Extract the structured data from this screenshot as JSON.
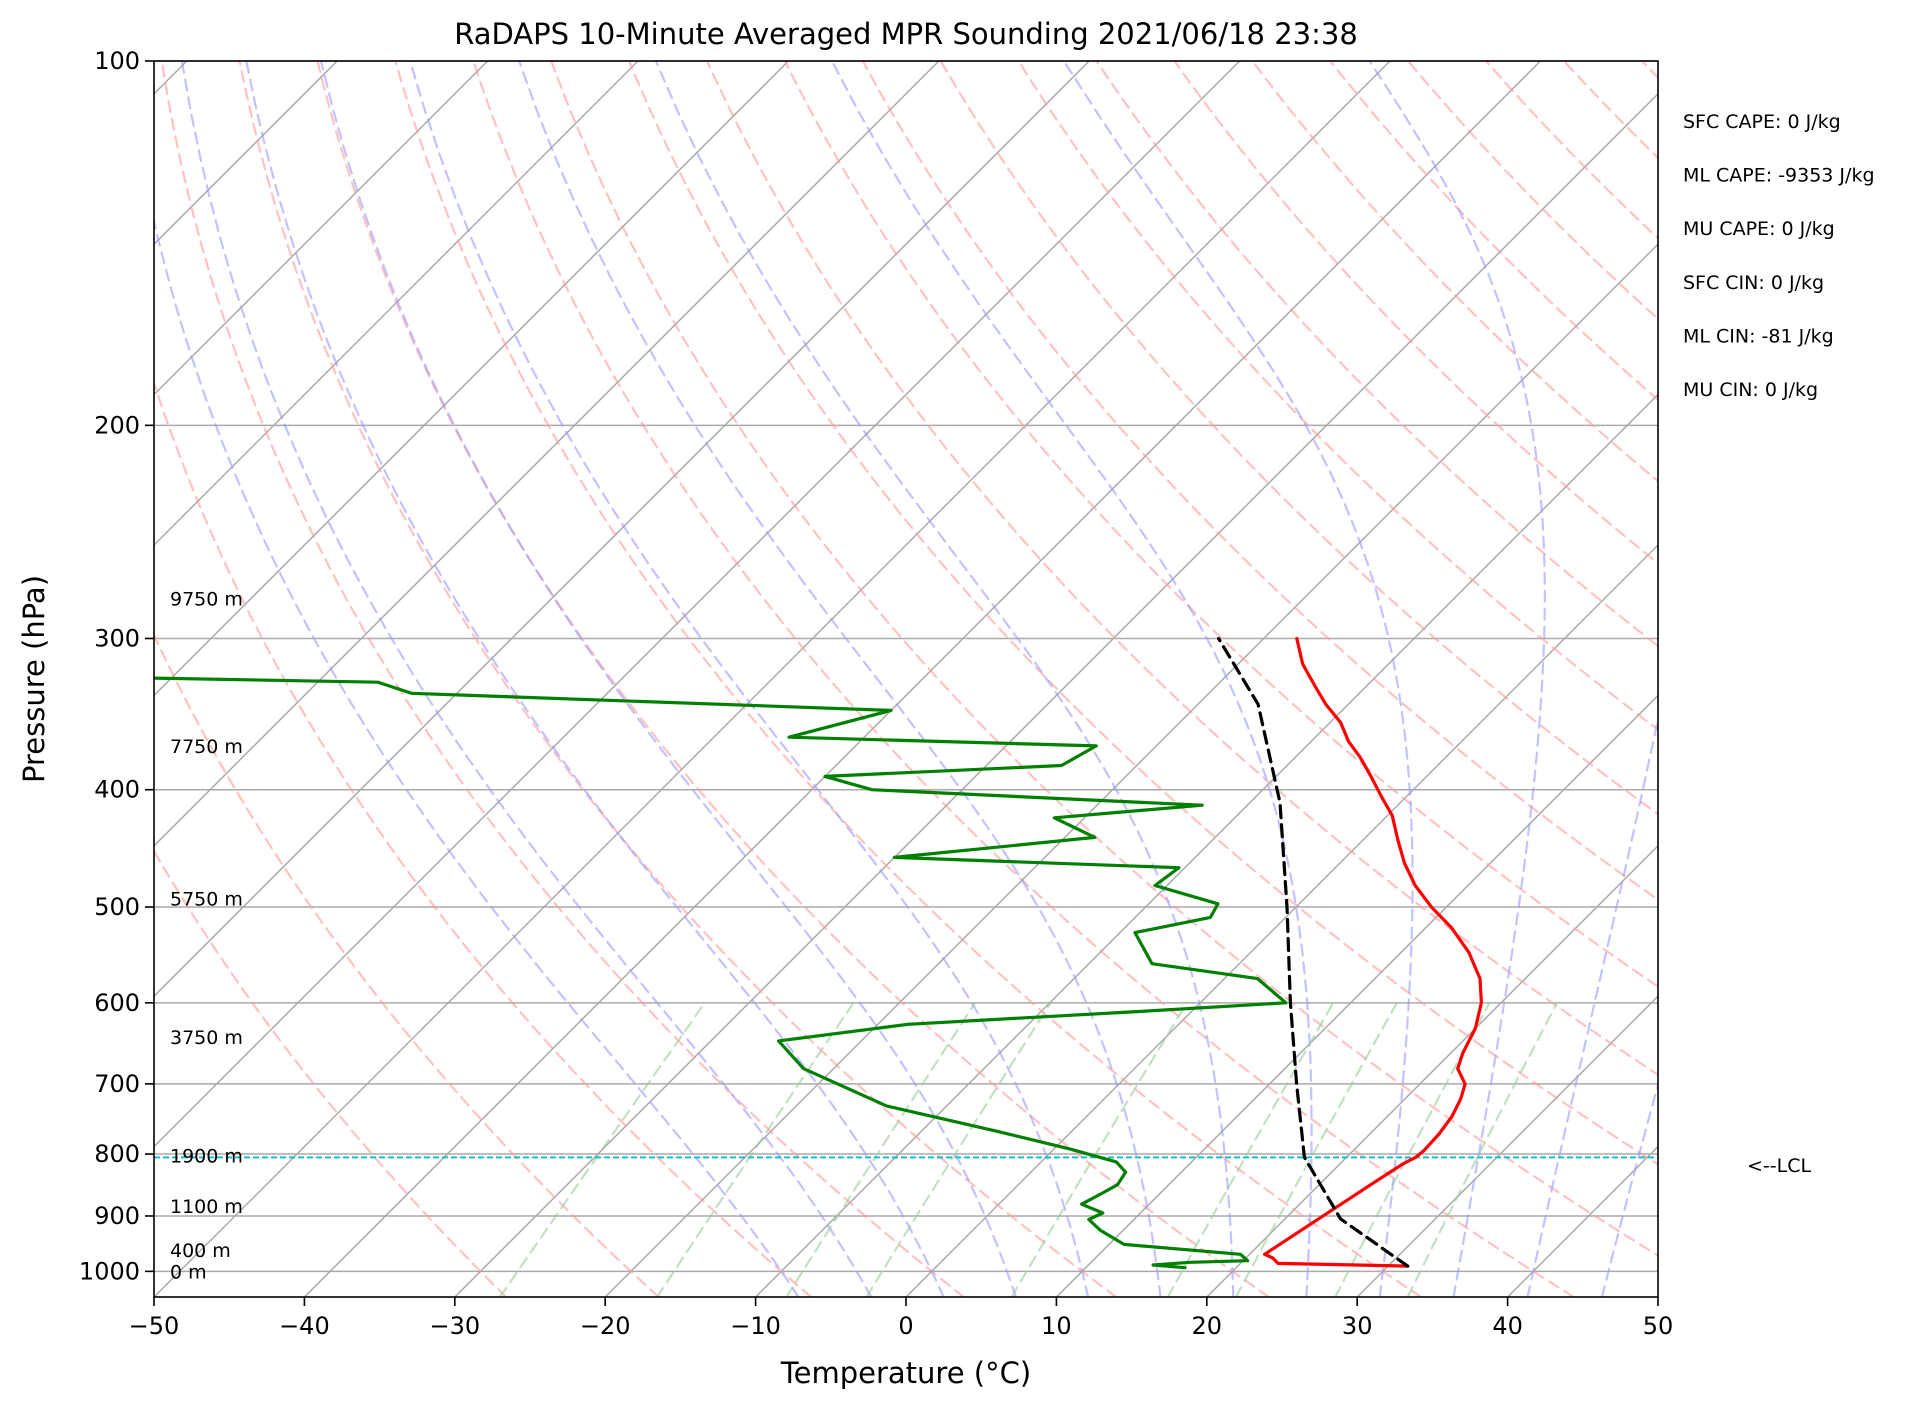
{
  "chart_data": {
    "type": "line",
    "title": "RaDAPS 10-Minute Averaged MPR Sounding 2021/06/18 23:38",
    "xlabel": "Temperature (°C)",
    "ylabel": "Pressure (hPa)",
    "xlim": [
      -50,
      50
    ],
    "ylim": [
      1050,
      100
    ],
    "y_scale": "log",
    "skew": true,
    "grid": true,
    "x_ticks": [
      -50,
      -40,
      -30,
      -20,
      -10,
      0,
      10,
      20,
      30,
      40,
      50
    ],
    "x_tick_labels": [
      "−50",
      "−40",
      "−30",
      "−20",
      "−10",
      "0",
      "10",
      "20",
      "30",
      "40",
      "50"
    ],
    "y_ticks": [
      100,
      200,
      300,
      400,
      500,
      600,
      700,
      800,
      900,
      1000
    ],
    "y_tick_labels": [
      "100",
      "200",
      "300",
      "400",
      "500",
      "600",
      "700",
      "800",
      "900",
      "1000"
    ],
    "series": [
      {
        "role": "temperature",
        "color": "#ff0000",
        "points": [
          [
            31.3,
            990
          ],
          [
            22.5,
            985
          ],
          [
            21.8,
            975
          ],
          [
            21.0,
            968
          ],
          [
            23.5,
            845
          ],
          [
            24.2,
            815
          ],
          [
            24.6,
            805
          ],
          [
            24.7,
            795
          ],
          [
            24.6,
            770
          ],
          [
            24.3,
            745
          ],
          [
            23.7,
            720
          ],
          [
            23.0,
            700
          ],
          [
            21.5,
            680
          ],
          [
            20.8,
            660
          ],
          [
            20.0,
            630
          ],
          [
            18.7,
            600
          ],
          [
            17.0,
            573
          ],
          [
            14.5,
            545
          ],
          [
            11.7,
            520
          ],
          [
            9.0,
            500
          ],
          [
            6.5,
            480
          ],
          [
            4.3,
            460
          ],
          [
            2.3,
            440
          ],
          [
            0.3,
            420
          ],
          [
            -1.7,
            405
          ],
          [
            -3.7,
            390
          ],
          [
            -5.7,
            376
          ],
          [
            -7.5,
            365
          ],
          [
            -9.3,
            352
          ],
          [
            -11.5,
            340
          ],
          [
            -13.5,
            328
          ],
          [
            -15.7,
            315
          ],
          [
            -17.8,
            300
          ]
        ]
      },
      {
        "role": "dewpoint",
        "color": "#008000",
        "points": [
          [
            16.6,
            993
          ],
          [
            14.3,
            988
          ],
          [
            16.6,
            983
          ],
          [
            20.3,
            980
          ],
          [
            19.4,
            968
          ],
          [
            11.0,
            950
          ],
          [
            8.5,
            925
          ],
          [
            7.0,
            906
          ],
          [
            7.5,
            895
          ],
          [
            5.5,
            880
          ],
          [
            6.2,
            860
          ],
          [
            6.6,
            848
          ],
          [
            6.3,
            828
          ],
          [
            5.0,
            812
          ],
          [
            1.0,
            792
          ],
          [
            -5.0,
            766
          ],
          [
            -14.0,
            730
          ],
          [
            -22.0,
            680
          ],
          [
            -25.5,
            645
          ],
          [
            -18.0,
            625
          ],
          [
            -3.5,
            610
          ],
          [
            5.7,
            600
          ],
          [
            2.2,
            573
          ],
          [
            -5.8,
            557
          ],
          [
            -9.0,
            525
          ],
          [
            -5.0,
            510
          ],
          [
            -5.4,
            497
          ],
          [
            -10.8,
            480
          ],
          [
            -10.4,
            464
          ],
          [
            -30.0,
            455
          ],
          [
            -18.0,
            438
          ],
          [
            -22.0,
            422
          ],
          [
            -13.0,
            412
          ],
          [
            -36.0,
            400
          ],
          [
            -40.0,
            390
          ],
          [
            -25.0,
            382
          ],
          [
            -24.0,
            368
          ],
          [
            -45.0,
            362
          ],
          [
            -40.0,
            344
          ],
          [
            -73.0,
            333
          ],
          [
            -76.0,
            326
          ],
          [
            -100.0,
            322
          ]
        ]
      },
      {
        "role": "parcel",
        "color": "#000000",
        "dash": true,
        "points": [
          [
            31.3,
            990
          ],
          [
            23.7,
            905
          ],
          [
            17.2,
            805
          ],
          [
            11.8,
            700
          ],
          [
            6.0,
            600
          ],
          [
            -0.6,
            500
          ],
          [
            -8.0,
            410
          ],
          [
            -16.0,
            340
          ],
          [
            -23.0,
            300
          ]
        ]
      }
    ],
    "lcl": {
      "pressure": 805,
      "label": "<--LCL",
      "color": "#17becf"
    },
    "height_labels": [
      {
        "label": "9750 m",
        "pressure": 278
      },
      {
        "label": "7750 m",
        "pressure": 368
      },
      {
        "label": "5750 m",
        "pressure": 492
      },
      {
        "label": "3750 m",
        "pressure": 640
      },
      {
        "label": "1900 m",
        "pressure": 802
      },
      {
        "label": "1100 m",
        "pressure": 883
      },
      {
        "label": "400 m",
        "pressure": 960
      },
      {
        "label": "0 m",
        "pressure": 1000
      }
    ],
    "annotations": [
      "SFC CAPE: 0 J/kg",
      "ML CAPE: -9353 J/kg",
      "MU CAPE: 0 J/kg",
      "SFC CIN: 0 J/kg",
      "ML CIN: -81 J/kg",
      "MU CIN: 0 J/kg"
    ],
    "reference_lines": {
      "isotherms": {
        "color": "#aaaaaa",
        "start": -130,
        "end": 50,
        "step": 10
      },
      "dry_adiabats": {
        "color": "#ff9999",
        "start_theta_c": -30,
        "end_theta_c": 200,
        "step": 10
      },
      "moist_adiabats": {
        "color": "#9999ff",
        "start_c": -10,
        "end_c": 45,
        "step": 5
      },
      "mixing_ratio": {
        "color": "#99cc99",
        "values_g_per_kg": [
          0.4,
          1,
          2,
          3,
          6,
          12,
          16,
          24,
          32
        ]
      }
    }
  }
}
